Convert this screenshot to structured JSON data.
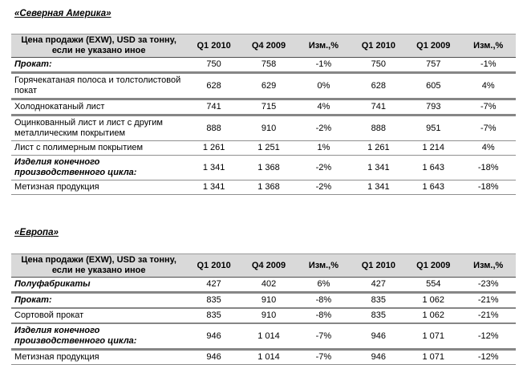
{
  "colors": {
    "header_bg": "#d9d9d9",
    "border_gray": "#868686",
    "border_dark": "#4d4d4d",
    "text": "#000000"
  },
  "america": {
    "title": "«Северная Америка»",
    "header_label": "Цена продажи (EXW), USD за тонну,\nесли не указано иное",
    "cols": [
      "Q1 2010",
      "Q4 2009",
      "Изм.,%",
      "Q1 2010",
      "Q1 2009",
      "Изм.,%"
    ],
    "rows": [
      {
        "label": "Прокат:",
        "v": [
          "750",
          "758",
          "-1%",
          "750",
          "757",
          "-1%"
        ]
      },
      {
        "label": "Горячекатаная полоса и толстолистовой покат",
        "v": [
          "628",
          "629",
          "0%",
          "628",
          "605",
          "4%"
        ]
      },
      {
        "label": "Холоднокатаный лист",
        "v": [
          "741",
          "715",
          "4%",
          "741",
          "793",
          "-7%"
        ]
      },
      {
        "label": "Оцинкованный лист и лист с другим металлическим покрытием",
        "v": [
          "888",
          "910",
          "-2%",
          "888",
          "951",
          "-7%"
        ]
      },
      {
        "label": "Лист с полимерным покрытием",
        "v": [
          "1 261",
          "1 251",
          "1%",
          "1 261",
          "1 214",
          "4%"
        ]
      },
      {
        "label": "Изделия конечного производственного цикла:",
        "v": [
          "1 341",
          "1 368",
          "-2%",
          "1 341",
          "1 643",
          "-18%"
        ]
      },
      {
        "label": "Метизная продукция",
        "v": [
          "1 341",
          "1 368",
          "-2%",
          "1 341",
          "1 643",
          "-18%"
        ]
      }
    ]
  },
  "europe": {
    "title": "«Европа»",
    "header_label": "Цена продажи (EXW), USD за тонну,\nесли не указано иное",
    "cols": [
      "Q1 2010",
      "Q4 2009",
      "Изм.,%",
      "Q1 2010",
      "Q1 2009",
      "Изм.,%"
    ],
    "rows": [
      {
        "label": "Полуфабрикаты",
        "v": [
          "427",
          "402",
          "6%",
          "427",
          "554",
          "-23%"
        ]
      },
      {
        "label": "Прокат:",
        "v": [
          "835",
          "910",
          "-8%",
          "835",
          "1 062",
          "-21%"
        ]
      },
      {
        "label": "Сортовой прокат",
        "v": [
          "835",
          "910",
          "-8%",
          "835",
          "1 062",
          "-21%"
        ]
      },
      {
        "label": "Изделия конечного производственного цикла:",
        "v": [
          "946",
          "1 014",
          "-7%",
          "946",
          "1 071",
          "-12%"
        ]
      },
      {
        "label": "Метизная продукция",
        "v": [
          "946",
          "1 014",
          "-7%",
          "946",
          "1 071",
          "-12%"
        ]
      }
    ]
  }
}
